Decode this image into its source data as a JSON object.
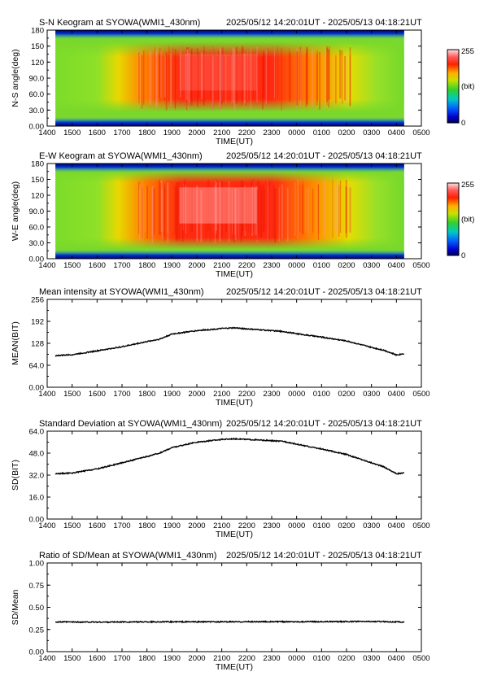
{
  "x_ticks": [
    "1400",
    "1500",
    "1600",
    "1700",
    "1800",
    "1900",
    "2000",
    "2100",
    "2200",
    "2300",
    "0000",
    "0100",
    "0200",
    "0300",
    "0400",
    "0500"
  ],
  "colors": {
    "line": "#000000",
    "frame": "#000000",
    "background": "#ffffff"
  },
  "chart_data": [
    {
      "type": "heatmap",
      "title": "S-N Keogram at SYOWA(WMI1_430nm)",
      "period": "2025/05/12 14:20:01UT - 2025/05/13 04:18:21UT",
      "xlabel": "TIME(UT)",
      "ylabel": "N-S angle(deg)",
      "y_ticks": [
        "0.00",
        "30.0",
        "60.0",
        "90.0",
        "120",
        "150",
        "180"
      ],
      "ylim": [
        0,
        180
      ],
      "xlim_hours": [
        14.0,
        29.0
      ],
      "data_range_hours": [
        14.33,
        28.31
      ],
      "colorbar": {
        "min_label": "0",
        "max_label": "255",
        "unit_label": "(bit)",
        "range": [
          0,
          255
        ],
        "colormap": "rainbow (dark blue - blue - green - yellow - red - white)"
      },
      "description_values": {
        "background_level_bit": 110,
        "peak_level_bit": 255,
        "bright_period_hours": [
          17.5,
          26.5
        ],
        "bright_angle_deg": [
          30,
          150
        ]
      }
    },
    {
      "type": "heatmap",
      "title": "E-W Keogram at SYOWA(WMI1_430nm)",
      "period": "2025/05/12 14:20:01UT - 2025/05/13 04:18:21UT",
      "xlabel": "TIME(UT)",
      "ylabel": "W-E angle(deg)",
      "y_ticks": [
        "0.00",
        "30.0",
        "60.0",
        "90.0",
        "120",
        "150",
        "180"
      ],
      "ylim": [
        0,
        180
      ],
      "xlim_hours": [
        14.0,
        29.0
      ],
      "data_range_hours": [
        14.33,
        28.31
      ],
      "colorbar": {
        "min_label": "0",
        "max_label": "255",
        "unit_label": "(bit)",
        "range": [
          0,
          255
        ],
        "colormap": "rainbow (dark blue - blue - green - yellow - red - white)"
      },
      "description_values": {
        "background_level_bit": 110,
        "peak_level_bit": 255,
        "bright_period_hours": [
          17.5,
          26.5
        ],
        "bright_angle_deg": [
          30,
          160
        ]
      }
    },
    {
      "type": "line",
      "title": "Mean intensity at SYOWA(WMI1_430nm)",
      "period": "2025/05/12 14:20:01UT - 2025/05/13 04:18:21UT",
      "xlabel": "TIME(UT)",
      "ylabel": "MEAN(BIT)",
      "y_ticks": [
        "0.00",
        "64.0",
        "128",
        "192",
        "256"
      ],
      "ylim": [
        0,
        256
      ],
      "xlim_hours": [
        14.0,
        29.0
      ],
      "x_hours": [
        14.33,
        15.0,
        16.0,
        17.0,
        18.0,
        18.5,
        19.0,
        20.0,
        21.0,
        21.5,
        22.0,
        23.0,
        23.5,
        24.0,
        25.0,
        26.0,
        27.0,
        27.5,
        28.0,
        28.31
      ],
      "y": [
        92,
        95,
        106,
        118,
        133,
        140,
        155,
        165,
        171,
        173,
        170,
        165,
        162,
        156,
        146,
        135,
        116,
        108,
        94,
        98
      ]
    },
    {
      "type": "line",
      "title": "Standard Deviation at SYOWA(WMI1_430nm)",
      "period": "2025/05/12 14:20:01UT - 2025/05/13 04:18:21UT",
      "xlabel": "TIME(UT)",
      "ylabel": "SD(BIT)",
      "y_ticks": [
        "0.00",
        "16.0",
        "32.0",
        "48.0",
        "64.0"
      ],
      "ylim": [
        0,
        64
      ],
      "xlim_hours": [
        14.0,
        29.0
      ],
      "x_hours": [
        14.33,
        15.0,
        16.0,
        17.0,
        18.0,
        18.5,
        19.0,
        20.0,
        21.0,
        21.5,
        22.0,
        23.0,
        23.5,
        24.0,
        25.0,
        26.0,
        27.0,
        27.5,
        28.0,
        28.31
      ],
      "y": [
        33.0,
        33.5,
        36.5,
        41.0,
        45.5,
        48.0,
        52.0,
        56.0,
        58.0,
        58.5,
        58.0,
        57.0,
        56.5,
        54.5,
        51.0,
        47.0,
        41.0,
        38.0,
        33.0,
        33.5
      ]
    },
    {
      "type": "line",
      "title": "Ratio of SD/Mean at SYOWA(WMI1_430nm)",
      "period": "2025/05/12 14:20:01UT - 2025/05/13 04:18:21UT",
      "xlabel": "TIME(UT)",
      "ylabel": "SD/Mean",
      "y_ticks": [
        "0.00",
        "0.25",
        "0.50",
        "0.75",
        "1.00"
      ],
      "ylim": [
        0,
        1
      ],
      "xlim_hours": [
        14.0,
        29.0
      ],
      "x_hours": [
        14.33,
        16.0,
        18.0,
        20.0,
        22.0,
        24.0,
        26.0,
        27.0,
        28.0,
        28.31
      ],
      "y": [
        0.335,
        0.333,
        0.336,
        0.336,
        0.337,
        0.338,
        0.339,
        0.34,
        0.336,
        0.333
      ]
    }
  ]
}
